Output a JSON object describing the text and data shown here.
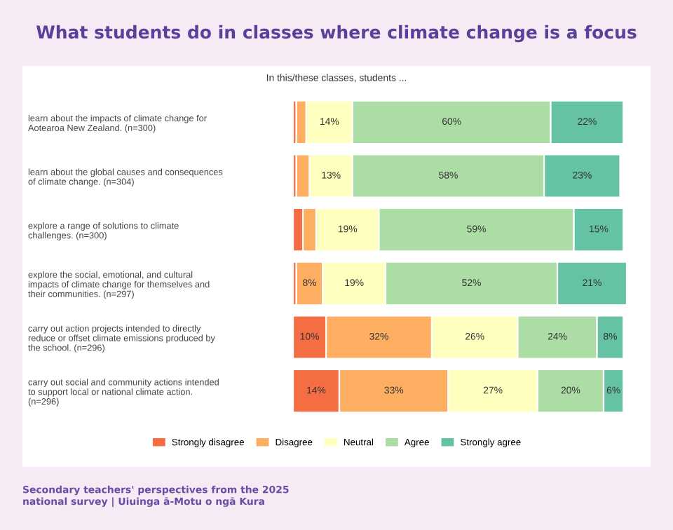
{
  "chart_data": {
    "type": "bar",
    "orientation": "horizontal",
    "stacked": true,
    "title": "What students do in classes where climate change is a focus",
    "subtitle": "In this/these classes, students ...",
    "categories": [
      "learn about the impacts of climate change for\nAotearoa New Zealand. (n=300)",
      "learn about the global causes and consequences\nof climate change. (n=304)",
      "explore a range of solutions to climate\nchallenges. (n=300)",
      "explore the social, emotional, and cultural\nimpacts of climate change for themselves and\ntheir communities. (n=297)",
      "carry out action projects intended to directly\nreduce or offset climate emissions produced by\nthe school. (n=296)",
      "carry out social and community actions intended\nto support local or national climate action.\n(n=296)"
    ],
    "series": [
      {
        "name": "Strongly disagree",
        "color": "#f46d43",
        "values": [
          1,
          1,
          3,
          1,
          10,
          14
        ],
        "value_labels": [
          null,
          null,
          null,
          null,
          "10%",
          "14%"
        ]
      },
      {
        "name": "Disagree",
        "color": "#fdae61",
        "values": [
          3,
          4,
          4,
          8,
          32,
          33
        ],
        "value_labels": [
          null,
          null,
          null,
          "8%",
          "32%",
          "33%"
        ]
      },
      {
        "name": "Neutral",
        "color": "#ffffbf",
        "values": [
          14,
          13,
          19,
          19,
          26,
          27
        ],
        "value_labels": [
          "14%",
          "13%",
          "19%",
          "19%",
          "26%",
          "27%"
        ]
      },
      {
        "name": "Agree",
        "color": "#abdda4",
        "values": [
          60,
          58,
          59,
          52,
          24,
          20
        ],
        "value_labels": [
          "60%",
          "58%",
          "59%",
          "52%",
          "24%",
          "20%"
        ]
      },
      {
        "name": "Strongly agree",
        "color": "#66c2a5",
        "values": [
          22,
          23,
          15,
          21,
          8,
          6
        ],
        "value_labels": [
          "22%",
          "23%",
          "15%",
          "21%",
          "8%",
          "6%"
        ]
      }
    ],
    "legend": "bottom",
    "annotations": [
      "Secondary teachers' perspectives from the 2025\nnational survey | Uiuinga ā-Motu o ngā Kura"
    ]
  }
}
